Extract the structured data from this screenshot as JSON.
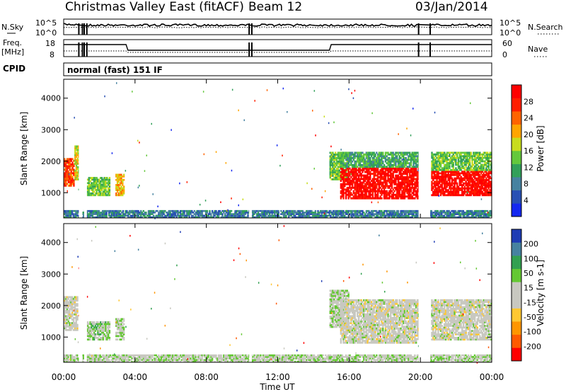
{
  "header": {
    "title": "Christmas Valley East (fitACF)",
    "beam": "Beam 12",
    "date": "03/Jan/2014"
  },
  "top_panels": {
    "nsky_label": "N.Sky",
    "nsky_ticks": [
      "10^5",
      "10^0"
    ],
    "nsearch_label": "N.Search",
    "nsearch_ticks": [
      "10^5",
      "10^0"
    ],
    "freq_label_1": "Freq.",
    "freq_label_2": "[MHz]",
    "freq_ticks": [
      "18",
      "8"
    ],
    "nave_label": "Nave",
    "nave_ticks": [
      "60",
      "0"
    ],
    "cpid_label": "CPID",
    "cpid_text": "normal (fast) 151 IF"
  },
  "colors": {
    "power_scale": [
      "#1428f0",
      "#2850b4",
      "#4682a0",
      "#32a05a",
      "#64c83c",
      "#c8dc1e",
      "#ffa500",
      "#ff6400",
      "#ff1e00",
      "#ff0000"
    ],
    "velocity_scale": [
      "#ff0000",
      "#ff5a00",
      "#ff9600",
      "#ffc832",
      "#c8c8c0",
      "#c8c8c0",
      "#64c832",
      "#32a050",
      "#4682a0",
      "#1e3cb4"
    ]
  },
  "chart_data": [
    {
      "type": "heatmap",
      "panel": "power",
      "ylabel": "Slant Range [km]",
      "yticks": [
        1000,
        2000,
        3000,
        4000
      ],
      "ylim": [
        200,
        4600
      ],
      "xlim": [
        0,
        24
      ],
      "colorbar_label": "Power [dB]",
      "colorbar_ticks": [
        "4",
        "8",
        "12",
        "16",
        "20",
        "24",
        "28"
      ],
      "colorbar_range": [
        0,
        32
      ],
      "regions": [
        {
          "t0": 0.0,
          "t1": 0.6,
          "r0": 1200,
          "r1": 2100,
          "level": 26
        },
        {
          "t0": 0.6,
          "t1": 1.0,
          "r0": 1400,
          "r1": 2500,
          "level": 18
        },
        {
          "t0": 1.3,
          "t1": 2.6,
          "r0": 900,
          "r1": 1500,
          "level": 14
        },
        {
          "t0": 2.9,
          "t1": 3.4,
          "r0": 900,
          "r1": 1600,
          "level": 20
        },
        {
          "t0": 14.9,
          "t1": 16.0,
          "r0": 1400,
          "r1": 2300,
          "level": 14
        },
        {
          "t0": 15.5,
          "t1": 20.0,
          "r0": 800,
          "r1": 1800,
          "level": 30
        },
        {
          "t0": 15.5,
          "t1": 20.0,
          "r0": 1800,
          "r1": 2300,
          "level": 12
        },
        {
          "t0": 20.6,
          "t1": 24.0,
          "r0": 900,
          "r1": 1700,
          "level": 30
        },
        {
          "t0": 20.6,
          "t1": 24.0,
          "r0": 1700,
          "r1": 2300,
          "level": 14
        },
        {
          "t0": 0.0,
          "t1": 24.0,
          "r0": 200,
          "r1": 450,
          "level": 8
        }
      ]
    },
    {
      "type": "heatmap",
      "panel": "velocity",
      "ylabel": "Slant Range [km]",
      "yticks": [
        1000,
        2000,
        3000,
        4000
      ],
      "ylim": [
        200,
        4600
      ],
      "xlim": [
        0,
        24
      ],
      "xlabel": "Time UT",
      "xticks": [
        "00:00",
        "04:00",
        "08:00",
        "12:00",
        "16:00",
        "20:00",
        "00:00"
      ],
      "colorbar_label": "Velocity [m s-1]",
      "colorbar_ticks": [
        "-200",
        "-100",
        "-50",
        "-15",
        "15",
        "50",
        "100",
        "200"
      ],
      "colorbar_range": [
        -250,
        250
      ],
      "regions": [
        {
          "t0": 0.0,
          "t1": 0.8,
          "r0": 1200,
          "r1": 2300,
          "level": 0
        },
        {
          "t0": 1.3,
          "t1": 2.6,
          "r0": 900,
          "r1": 1500,
          "level": 60
        },
        {
          "t0": 2.9,
          "t1": 3.4,
          "r0": 900,
          "r1": 1600,
          "level": 30
        },
        {
          "t0": 14.9,
          "t1": 16.0,
          "r0": 1300,
          "r1": 2500,
          "level": 30
        },
        {
          "t0": 15.5,
          "t1": 20.0,
          "r0": 800,
          "r1": 2200,
          "level": 0
        },
        {
          "t0": 20.6,
          "t1": 24.0,
          "r0": 900,
          "r1": 2200,
          "level": 0
        },
        {
          "t0": 0.0,
          "t1": 24.0,
          "r0": 200,
          "r1": 450,
          "level": 30
        }
      ]
    }
  ]
}
